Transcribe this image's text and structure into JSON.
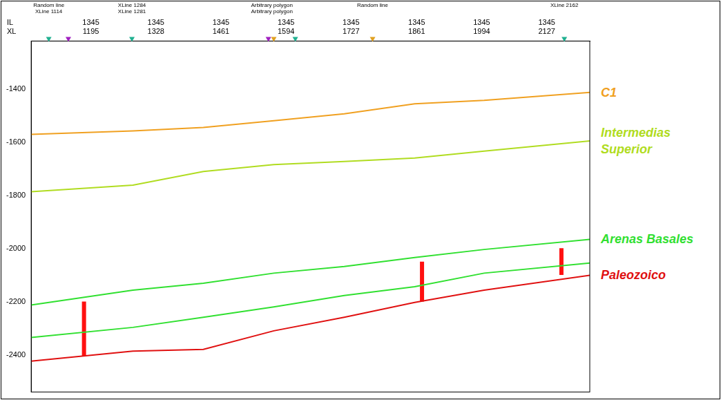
{
  "chart_data": {
    "type": "line",
    "axis_row_labels": [
      "IL",
      "XL"
    ],
    "x": [
      1073,
      1281,
      1425,
      1569,
      1713,
      1857,
      1999,
      2215
    ],
    "xlim": [
      1073,
      2215
    ],
    "xticks": [
      {
        "value": 1195,
        "label": "1345\n1195"
      },
      {
        "value": 1328,
        "label": "1345\n1328"
      },
      {
        "value": 1461,
        "label": "1345\n1461"
      },
      {
        "value": 1594,
        "label": "1345\n1594"
      },
      {
        "value": 1727,
        "label": "1345\n1727"
      },
      {
        "value": 1861,
        "label": "1345\n1861"
      },
      {
        "value": 1994,
        "label": "1345\n1994"
      },
      {
        "value": 2127,
        "label": "1345\n2127"
      }
    ],
    "ylim": [
      -2540,
      -1220
    ],
    "yticks": [
      -2400,
      -2200,
      -2000,
      -1800,
      -1600,
      -1400
    ],
    "grid": false,
    "legend": "right",
    "series": [
      {
        "name": "C1",
        "color": "#f0a020",
        "values": [
          -1571,
          -1558,
          -1545,
          -1520,
          -1494,
          -1456,
          -1443,
          -1413
        ]
      },
      {
        "name": "Intermedias Superior",
        "color": "#b0dc20",
        "values": [
          -1787,
          -1762,
          -1711,
          -1685,
          -1673,
          -1660,
          -1634,
          -1596
        ]
      },
      {
        "name": "Arenas Basales",
        "color": "#30e030",
        "values": [
          -2213,
          -2157,
          -2131,
          -2093,
          -2068,
          -2034,
          -2004,
          -1966
        ],
        "base_values": [
          -2335,
          -2297,
          -2259,
          -2220,
          -2177,
          -2144,
          -2093,
          -2055
        ]
      },
      {
        "name": "Paleozoico",
        "color": "#e01010",
        "values": [
          -2424,
          -2386,
          -2380,
          -2310,
          -2259,
          -2203,
          -2157,
          -2101
        ]
      }
    ],
    "thickness_bars": {
      "color": "#ff1010",
      "x": [
        1181,
        1872,
        2157
      ],
      "top": [
        -2200,
        -2050,
        -1999
      ],
      "bottom": [
        -2404,
        -2200,
        -2100
      ]
    },
    "annotations": [
      {
        "text": [
          "Random line",
          "XLine 1114"
        ],
        "x": 1109
      },
      {
        "text": [
          "XLine 1284",
          "XLine 1281"
        ],
        "x": 1279
      },
      {
        "text": [
          "Arbitrary polygon",
          "Arbitrary polygon"
        ],
        "x": 1565
      },
      {
        "text": [
          "Random line"
        ],
        "x": 1771
      },
      {
        "text": [
          "XLine 2162"
        ],
        "x": 2163
      }
    ],
    "markers": {
      "x": [
        1109,
        1149,
        1279,
        1558,
        1569,
        1613,
        1771,
        2163
      ],
      "colors": [
        "#20b090",
        "#a020c0",
        "#20b090",
        "#a020c0",
        "#e0a020",
        "#20b090",
        "#e0a020",
        "#20b090"
      ]
    }
  }
}
